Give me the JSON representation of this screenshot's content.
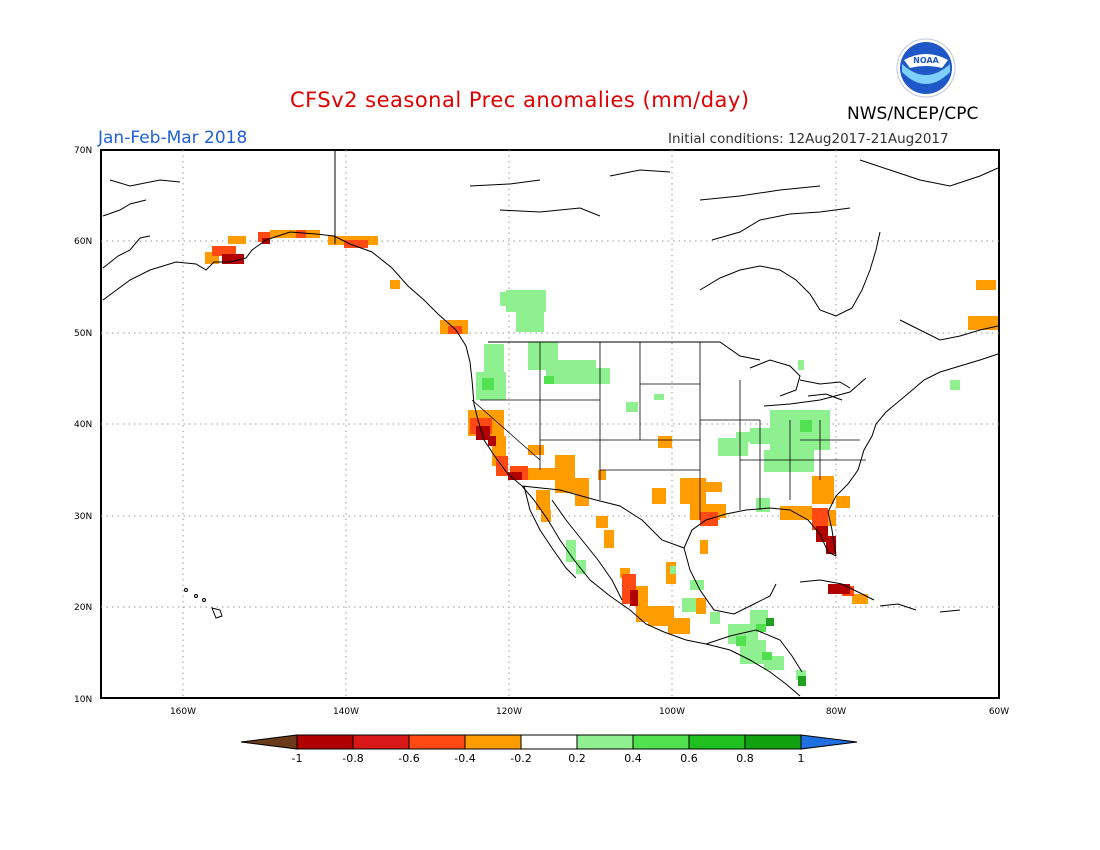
{
  "header": {
    "title": "CFSv2 seasonal Prec anomalies (mm/day)",
    "period": "Jan-Feb-Mar 2018",
    "initial_conditions": "Initial conditions: 12Aug2017-21Aug2017",
    "agency": "NWS/NCEP/CPC",
    "logo_text": "NOAA"
  },
  "map": {
    "lon_range": [
      -170,
      -60
    ],
    "lat_range": [
      10,
      70
    ],
    "lon_labels": [
      "160W",
      "140W",
      "120W",
      "100W",
      "80W",
      "60W"
    ],
    "lat_labels": [
      "10N",
      "20N",
      "30N",
      "40N",
      "50N",
      "60N",
      "70N"
    ],
    "units": "mm/day"
  },
  "colorbar": {
    "labels": [
      "-1",
      "-0.8",
      "-0.6",
      "-0.4",
      "-0.2",
      "0.2",
      "0.4",
      "0.6",
      "0.8",
      "1"
    ],
    "colors": [
      "#6b3a1a",
      "#b00000",
      "#d81818",
      "#ff4a14",
      "#ff9d00",
      "#ffffff",
      "#8ff08f",
      "#50e050",
      "#20c020",
      "#10a010",
      "#1f6fe0"
    ]
  },
  "legend_colors": {
    "dry_strong": "#b00000",
    "dry_mid": "#ff4a14",
    "dry_weak": "#ff9d00",
    "wet_weak": "#8ff08f",
    "wet_mid": "#50e050",
    "wet_strong": "#20a020"
  }
}
